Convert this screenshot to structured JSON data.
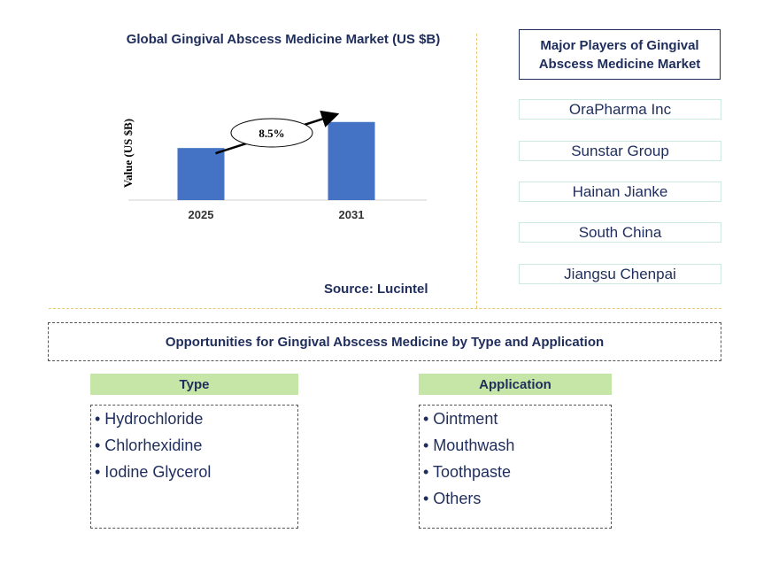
{
  "chart_data": {
    "type": "bar",
    "title": "Global Gingival Abscess Medicine Market (US $B)",
    "ylabel": "Value (US $B)",
    "categories": [
      "2025",
      "2031"
    ],
    "values": [
      1.0,
      1.5
    ],
    "ylim": [
      0,
      1.7
    ],
    "annotation": "8.5%",
    "bar_color": "#4472c4",
    "source": "Source: Lucintel"
  },
  "players": {
    "title": "Major Players of Gingival Abscess Medicine Market",
    "items": [
      "OraPharma Inc",
      "Sunstar Group",
      "Hainan Jianke",
      "South China",
      "Jiangsu Chenpai"
    ]
  },
  "opportunities": {
    "title": "Opportunities for Gingival Abscess Medicine by Type and Application",
    "type": {
      "header": "Type",
      "items": [
        "• Hydrochloride",
        "• Chlorhexidine",
        "• Iodine Glycerol"
      ]
    },
    "application": {
      "header": "Application",
      "items": [
        "• Ointment",
        "• Mouthwash",
        "• Toothpaste",
        "• Others"
      ]
    }
  }
}
